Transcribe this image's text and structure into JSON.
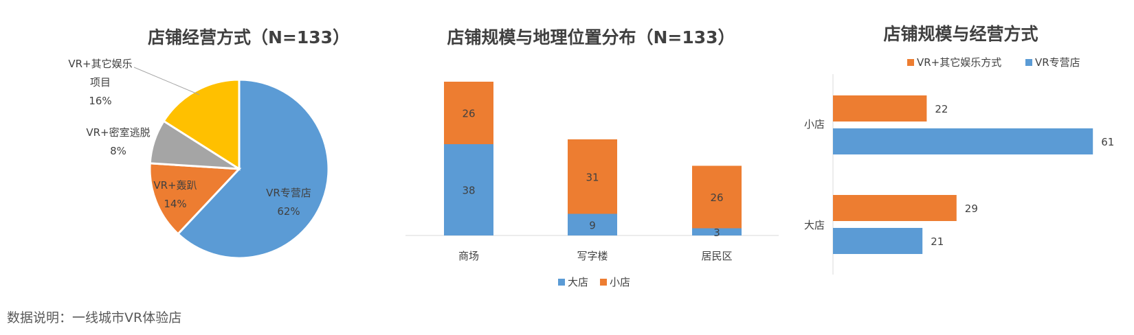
{
  "chart_data": [
    {
      "type": "pie",
      "title": "店铺经营方式（N=133）",
      "slices": [
        {
          "label": "VR专营店",
          "value": 62,
          "value_label": "62%",
          "color": "#5B9BD5"
        },
        {
          "label": "VR+轰趴",
          "value": 14,
          "value_label": "14%",
          "color": "#ED7D31"
        },
        {
          "label": "VR+密室逃脱",
          "value": 8,
          "value_label": "8%",
          "color": "#A5A5A5"
        },
        {
          "label": "VR+其它娱乐项目",
          "label_lines": [
            "VR+其它娱乐",
            "项目"
          ],
          "value": 16,
          "value_label": "16%",
          "color": "#FFC000"
        }
      ]
    },
    {
      "type": "bar",
      "stacked": true,
      "title": "店铺规模与地理位置分布（N=133）",
      "categories": [
        "商场",
        "写字楼",
        "居民区"
      ],
      "series": [
        {
          "name": "大店",
          "values": [
            38,
            9,
            3
          ],
          "color": "#5B9BD5"
        },
        {
          "name": "小店",
          "values": [
            26,
            31,
            26
          ],
          "color": "#ED7D31"
        }
      ],
      "legend": "bottom",
      "ylim": [
        0,
        70
      ]
    },
    {
      "type": "bar",
      "orientation": "horizontal",
      "title": "店铺规模与经营方式",
      "categories": [
        "小店",
        "大店"
      ],
      "series": [
        {
          "name": "VR+其它娱乐方式",
          "values": [
            22,
            29
          ],
          "color": "#ED7D31"
        },
        {
          "name": "VR专营店",
          "values": [
            61,
            21
          ],
          "color": "#5B9BD5"
        }
      ],
      "legend": "top",
      "xlim": [
        0,
        61
      ]
    }
  ],
  "note": "数据说明：一线城市VR体验店"
}
